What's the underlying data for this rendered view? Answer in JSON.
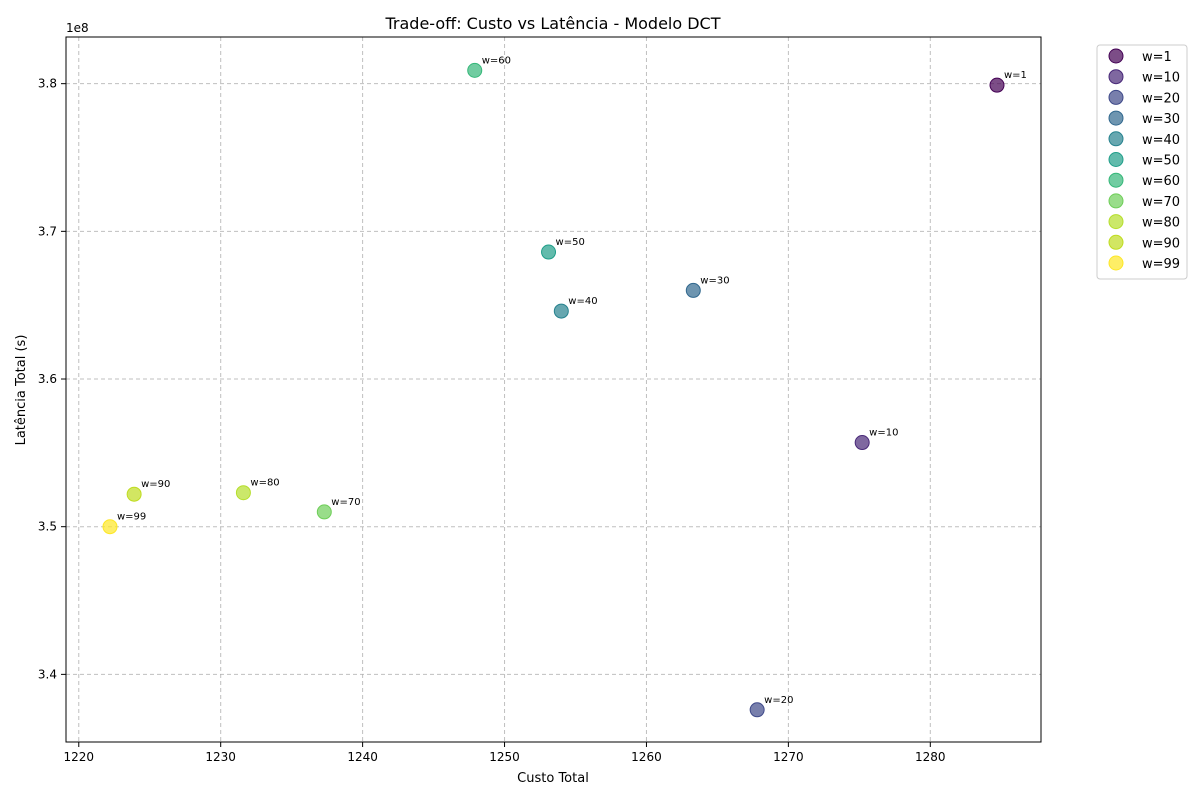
{
  "chart_data": {
    "type": "scatter",
    "title": "Trade-off: Custo vs Latência - Modelo DCT",
    "xlabel": "Custo Total",
    "ylabel": "Latência Total (s)",
    "y_offset_label": "1e8",
    "xlim": [
      1219.1,
      1287.8
    ],
    "ylim": [
      3.3542,
      3.8316
    ],
    "x_ticks": [
      1220,
      1230,
      1240,
      1250,
      1260,
      1270,
      1280
    ],
    "y_ticks": [
      3.4,
      3.5,
      3.6,
      3.7,
      3.8
    ],
    "y_tick_labels": [
      "3.4",
      "3.5",
      "3.6",
      "3.7",
      "3.8"
    ],
    "grid": true,
    "legend_position": "outside-right-top",
    "points": [
      {
        "name": "w=1",
        "label": "w=1",
        "x": 1284.7,
        "y": 3.799,
        "color": "#440154"
      },
      {
        "name": "w=10",
        "label": "w=10",
        "x": 1275.2,
        "y": 3.557,
        "color": "#482878"
      },
      {
        "name": "w=20",
        "label": "w=20",
        "x": 1267.8,
        "y": 3.376,
        "color": "#3e4989"
      },
      {
        "name": "w=30",
        "label": "w=30",
        "x": 1263.3,
        "y": 3.66,
        "color": "#31688e"
      },
      {
        "name": "w=40",
        "label": "w=40",
        "x": 1254.0,
        "y": 3.646,
        "color": "#26828e"
      },
      {
        "name": "w=50",
        "label": "w=50",
        "x": 1253.1,
        "y": 3.686,
        "color": "#1f9e89"
      },
      {
        "name": "w=60",
        "label": "w=60",
        "x": 1247.9,
        "y": 3.809,
        "color": "#35b779"
      },
      {
        "name": "w=70",
        "label": "w=70",
        "x": 1237.3,
        "y": 3.51,
        "color": "#6ece58"
      },
      {
        "name": "w=80",
        "label": "w=80",
        "x": 1231.6,
        "y": 3.523,
        "color": "#b5de2b"
      },
      {
        "name": "w=90",
        "label": "w=90",
        "x": 1223.9,
        "y": 3.522,
        "color": "#bfdc1f"
      },
      {
        "name": "w=99",
        "label": "w=99",
        "x": 1222.2,
        "y": 3.5,
        "color": "#fde725"
      }
    ]
  }
}
